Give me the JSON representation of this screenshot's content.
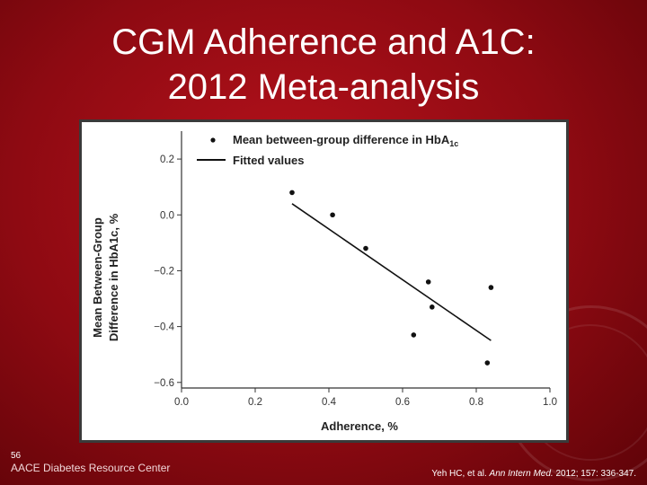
{
  "slide": {
    "title_line1": "CGM Adherence and A1C:",
    "title_line2": "2012 Meta-analysis",
    "slide_number": "56",
    "footer_logo": "AACE Diabetes Resource Center",
    "citation_prefix": "Yeh HC, et al. ",
    "citation_journal": "Ann Intern Med.",
    "citation_suffix": " 2012; 157: 336-347."
  },
  "chart_data": {
    "type": "scatter",
    "xlabel": "Adherence, %",
    "ylabel_line1": "Mean Between-Group",
    "ylabel_line2": "Difference in HbA1c, %",
    "xlim": [
      0.0,
      1.0
    ],
    "ylim": [
      -0.62,
      0.3
    ],
    "x_ticks": [
      "0.0",
      "0.2",
      "0.4",
      "0.6",
      "0.8",
      "1.0"
    ],
    "y_ticks": [
      "0.2",
      "0.0",
      "−0.2",
      "−0.4",
      "−0.6"
    ],
    "grid": false,
    "legend_position": "top-left",
    "legend": {
      "points_label": "Mean between-group difference in HbA1c",
      "line_label": "Fitted values"
    },
    "series": [
      {
        "name": "Mean between-group difference in HbA1c",
        "kind": "points",
        "points": [
          [
            0.3,
            0.08
          ],
          [
            0.41,
            0.0
          ],
          [
            0.5,
            -0.12
          ],
          [
            0.63,
            -0.43
          ],
          [
            0.67,
            -0.24
          ],
          [
            0.68,
            -0.33
          ],
          [
            0.83,
            -0.53
          ],
          [
            0.84,
            -0.26
          ]
        ]
      },
      {
        "name": "Fitted values",
        "kind": "line",
        "points": [
          [
            0.3,
            0.04
          ],
          [
            0.84,
            -0.45
          ]
        ]
      }
    ]
  }
}
